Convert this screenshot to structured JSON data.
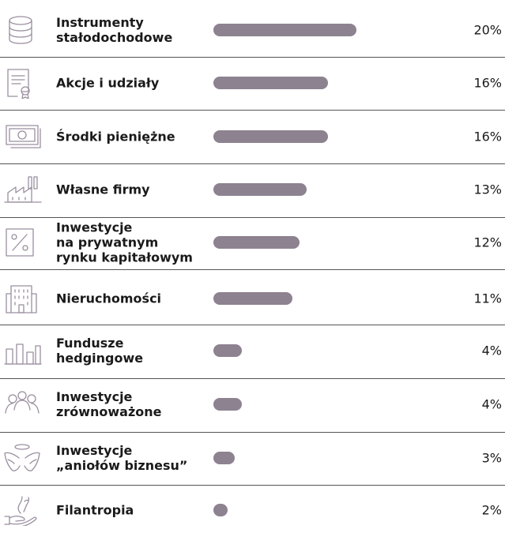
{
  "colors": {
    "bar": "#8d8290",
    "icon_stroke": "#9b8fa0",
    "divider": "#555555",
    "text": "#1a1a1a"
  },
  "chart_data": {
    "type": "bar",
    "orientation": "horizontal",
    "categories": [
      "Instrumenty\nstałodochodowe",
      "Akcje i udziały",
      "Środki pieniężne",
      "Własne firmy",
      "Inwestycje\nna prywatnym\nrynku kapitałowym",
      "Nieruchomości",
      "Fundusze\nhedgingowe",
      "Inwestycje\nzrównoważone",
      "Inwestycje\n„aniołów biznesu”",
      "Filantropia"
    ],
    "values": [
      20,
      16,
      16,
      13,
      12,
      11,
      4,
      4,
      3,
      2
    ],
    "value_labels": [
      "20%",
      "16%",
      "16%",
      "13%",
      "12%",
      "11%",
      "4%",
      "4%",
      "3%",
      "2%"
    ],
    "icons": [
      "database-icon",
      "certificate-icon",
      "banknotes-icon",
      "factory-icon",
      "percent-icon",
      "building-icon",
      "bar-chart-icon",
      "people-icon",
      "angel-wings-icon",
      "hand-icon"
    ],
    "unit": "%",
    "grid": false,
    "legend": "none"
  }
}
